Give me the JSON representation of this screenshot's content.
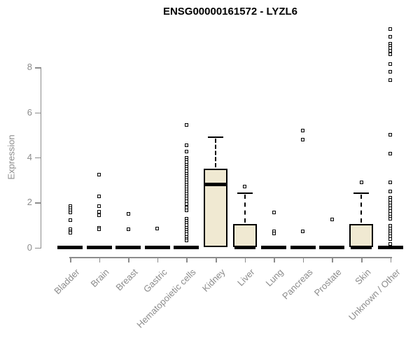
{
  "chart_data": {
    "type": "boxplot",
    "title": "ENSG00000161572 - LYZL6",
    "ylabel": "Expression",
    "xlabel": "",
    "y_ticks": [
      0,
      2,
      4,
      6,
      8
    ],
    "ylim": [
      0,
      9.8
    ],
    "grid": false,
    "legend": false,
    "colors": {
      "box_fill": "#f0e9d2",
      "box_border": "#000000",
      "axis": "#8c8c8c",
      "title": "#000000"
    },
    "categories": [
      "Bladder",
      "Brain",
      "Breast",
      "Gastric",
      "Hematopoietic cells",
      "Kidney",
      "Liver",
      "Lung",
      "Pancreas",
      "Prostate",
      "Skin",
      "Unknown / Other"
    ],
    "groups": [
      {
        "name": "Bladder",
        "q1": 0,
        "median": 0,
        "q3": 0,
        "whisker_high": 0,
        "outliers": [
          1.82,
          1.73,
          1.65,
          1.56,
          1.22,
          0.82,
          0.73,
          0.64
        ]
      },
      {
        "name": "Brain",
        "q1": 0,
        "median": 0,
        "q3": 0,
        "whisker_high": 0,
        "outliers": [
          3.25,
          2.27,
          1.83,
          1.6,
          1.44,
          0.88,
          0.8
        ]
      },
      {
        "name": "Breast",
        "q1": 0,
        "median": 0,
        "q3": 0,
        "whisker_high": 0,
        "outliers": [
          1.5,
          0.82
        ]
      },
      {
        "name": "Gastric",
        "q1": 0,
        "median": 0,
        "q3": 0,
        "whisker_high": 0,
        "outliers": [
          0.85
        ]
      },
      {
        "name": "Hematopoietic cells",
        "q1": 0,
        "median": 0,
        "q3": 0,
        "whisker_high": 0,
        "outliers": [
          5.45,
          4.55,
          4.27,
          3.98,
          3.88,
          3.78,
          3.68,
          3.58,
          3.48,
          3.38,
          3.28,
          3.18,
          3.08,
          2.98,
          2.88,
          2.78,
          2.68,
          2.58,
          2.48,
          2.38,
          2.28,
          2.18,
          2.05,
          1.92,
          1.78,
          1.66,
          1.28,
          1.18,
          1.08,
          0.98,
          0.88,
          0.78,
          0.68,
          0.58,
          0.48,
          0.38,
          0.31
        ]
      },
      {
        "name": "Kidney",
        "q1": 0,
        "median": 2.8,
        "q3": 3.5,
        "whisker_high": 4.9,
        "outliers": []
      },
      {
        "name": "Liver",
        "q1": 0,
        "median": 0,
        "q3": 1.05,
        "whisker_high": 2.4,
        "outliers": [
          2.72
        ]
      },
      {
        "name": "Lung",
        "q1": 0,
        "median": 0,
        "q3": 0,
        "whisker_high": 0,
        "outliers": [
          1.55,
          0.72,
          0.62
        ]
      },
      {
        "name": "Pancreas",
        "q1": 0,
        "median": 0,
        "q3": 0,
        "whisker_high": 0,
        "outliers": [
          5.2,
          4.8,
          0.7
        ]
      },
      {
        "name": "Prostate",
        "q1": 0,
        "median": 0,
        "q3": 0,
        "whisker_high": 0,
        "outliers": [
          1.25
        ]
      },
      {
        "name": "Skin",
        "q1": 0,
        "median": 0,
        "q3": 1.05,
        "whisker_high": 2.4,
        "outliers": [
          2.9
        ]
      },
      {
        "name": "Unknown / Other",
        "q1": 0,
        "median": 0,
        "q3": 0,
        "whisker_high": 0,
        "outliers": [
          9.7,
          9.36,
          9.06,
          8.96,
          8.86,
          8.74,
          8.6,
          8.14,
          7.8,
          7.44,
          5.0,
          4.16,
          2.88,
          2.5,
          2.22,
          2.1,
          1.98,
          1.86,
          1.74,
          1.62,
          1.5,
          1.38,
          1.26,
          0.97,
          0.85,
          0.73,
          0.61,
          0.49,
          0.37,
          0.15
        ]
      }
    ]
  }
}
